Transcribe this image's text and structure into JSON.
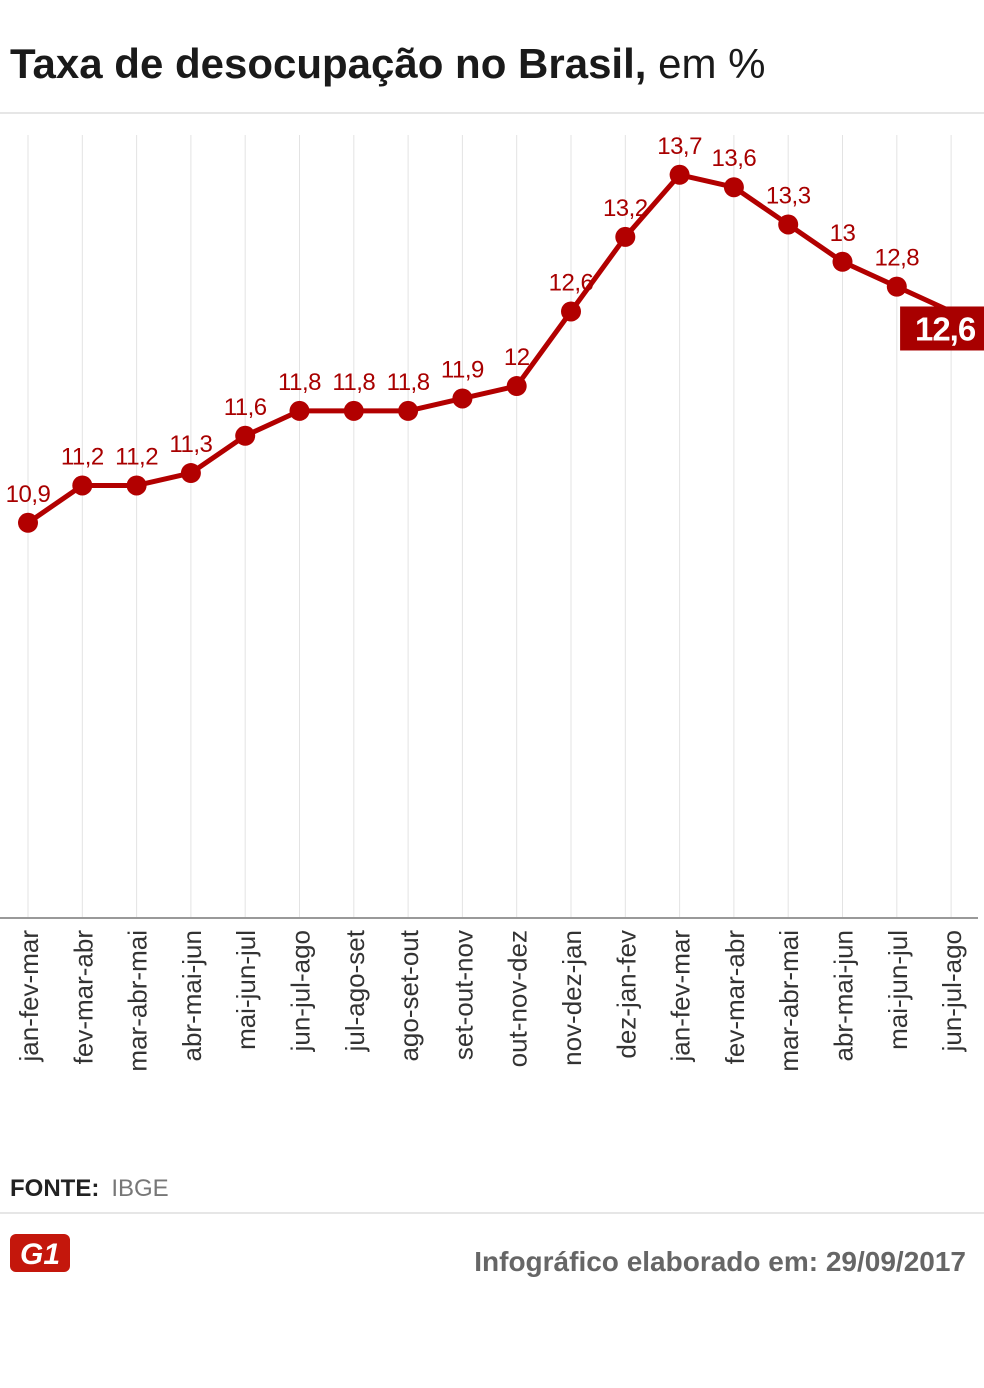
{
  "header": {
    "title_bold": "Taxa de desocupação no Brasil,",
    "title_light": "em %"
  },
  "colors": {
    "line": "#b20000",
    "label": "#a80000",
    "highlight_bg": "#a80000",
    "grid": "#e3e3e3",
    "axis": "#999999"
  },
  "chart_data": {
    "type": "line",
    "categories": [
      "jan-fev-mar",
      "fev-mar-abr",
      "mar-abr-mai",
      "abr-mai-jun",
      "mai-jun-jul",
      "jun-jul-ago",
      "jul-ago-set",
      "ago-set-out",
      "set-out-nov",
      "out-nov-dez",
      "nov-dez-jan",
      "dez-jan-fev",
      "jan-fev-mar",
      "fev-mar-abr",
      "mar-abr-mai",
      "abr-mai-jun",
      "mai-jun-jul",
      "jun-jul-ago"
    ],
    "values": [
      10.9,
      11.2,
      11.2,
      11.3,
      11.6,
      11.8,
      11.8,
      11.8,
      11.9,
      12,
      12.6,
      13.2,
      13.7,
      13.6,
      13.3,
      13,
      12.8,
      12.6
    ],
    "value_labels": [
      "10,9",
      "11,2",
      "11,2",
      "11,3",
      "11,6",
      "11,8",
      "11,8",
      "11,8",
      "11,9",
      "12",
      "12,6",
      "13,2",
      "13,7",
      "13,6",
      "13,3",
      "13",
      "12,8",
      "12,6"
    ],
    "highlight_last": true,
    "ylim": [
      7.72,
      14.02
    ],
    "grid": "vertical"
  },
  "source": {
    "label": "FONTE:",
    "value": "IBGE"
  },
  "logo": {
    "text": "G1"
  },
  "footer": {
    "date_text": "Infográfico elaborado em: 29/09/2017"
  }
}
